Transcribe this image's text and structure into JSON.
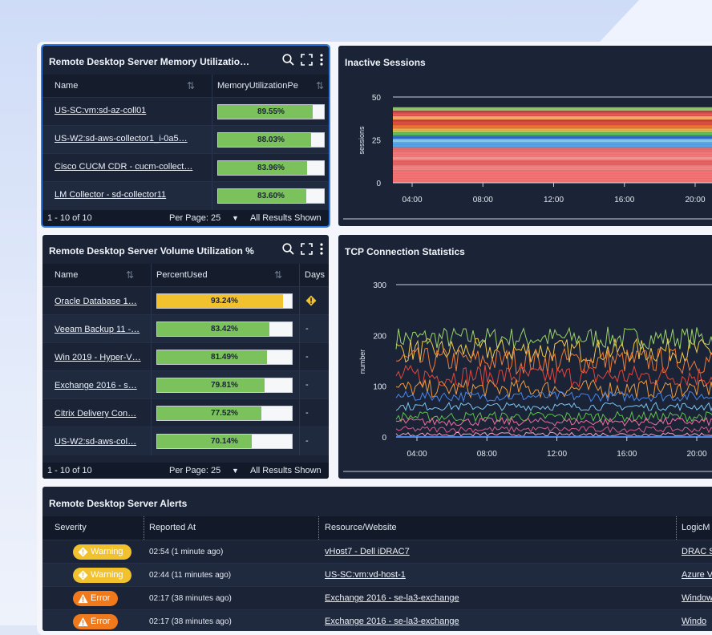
{
  "memory_panel": {
    "title": "Remote Desktop Server Memory Utilizatio…",
    "columns": [
      "Name",
      "MemoryUtilizationPe"
    ],
    "rows": [
      {
        "name": "US-SC:vm:sd-az-coll01",
        "value": 89.55,
        "label": "89.55%"
      },
      {
        "name": "US-W2:sd-aws-collector1_i-0a5…",
        "value": 88.03,
        "label": "88.03%"
      },
      {
        "name": "Cisco CUCM CDR - cucm-collect…",
        "value": 83.96,
        "label": "83.96%"
      },
      {
        "name": "LM Collector - sd-collector11",
        "value": 83.6,
        "label": "83.60%"
      }
    ],
    "footer": {
      "range": "1 - 10 of 10",
      "per_page": "Per Page: 25",
      "shown": "All Results Shown"
    }
  },
  "volume_panel": {
    "title": "Remote Desktop Server Volume Utilization %",
    "columns": [
      "Name",
      "PercentUsed",
      "Days"
    ],
    "rows": [
      {
        "name": "Oracle Database 1…",
        "value": 93.24,
        "label": "93.24%",
        "days": "",
        "warn": true
      },
      {
        "name": "Veeam Backup 11 -…",
        "value": 83.42,
        "label": "83.42%",
        "days": "-",
        "warn": false
      },
      {
        "name": "Win 2019 - Hyper-V…",
        "value": 81.49,
        "label": "81.49%",
        "days": "-",
        "warn": false
      },
      {
        "name": "Exchange 2016 - s…",
        "value": 79.81,
        "label": "79.81%",
        "days": "-",
        "warn": false
      },
      {
        "name": "Citrix Delivery Con…",
        "value": 77.52,
        "label": "77.52%",
        "days": "-",
        "warn": false
      },
      {
        "name": "US-W2:sd-aws-col…",
        "value": 70.14,
        "label": "70.14%",
        "days": "-",
        "warn": false
      }
    ],
    "footer": {
      "range": "1 - 10 of 10",
      "per_page": "Per Page: 25",
      "shown": "All Results Shown"
    }
  },
  "inactive_panel": {
    "title": "Inactive Sessions",
    "ylabel": "sessions",
    "yticks": [
      "50",
      "25",
      "0"
    ],
    "xticks": [
      "04:00",
      "08:00",
      "12:00",
      "16:00",
      "20:00"
    ]
  },
  "tcp_panel": {
    "title": "TCP Connection Statistics",
    "ylabel": "number",
    "yticks": [
      "300",
      "200",
      "100",
      "0"
    ],
    "xticks": [
      "04:00",
      "08:00",
      "12:00",
      "16:00",
      "20:00"
    ]
  },
  "alerts_panel": {
    "title": "Remote Desktop Server Alerts",
    "columns": [
      "Severity",
      "Reported At",
      "Resource/Website",
      "LogicM"
    ],
    "rows": [
      {
        "severity": "Warning",
        "reported": "02:54  (1 minute ago)",
        "resource": "vHost7 - Dell iDRAC7",
        "logic": "DRAC S"
      },
      {
        "severity": "Warning",
        "reported": "02:44  (11 minutes ago)",
        "resource": "US-SC:vm:vd-host-1",
        "logic": "Azure V"
      },
      {
        "severity": "Error",
        "reported": "02:17  (38 minutes ago)",
        "resource": "Exchange 2016 - se-la3-exchange",
        "logic": "Window"
      },
      {
        "severity": "Error",
        "reported": "02:17  (38 minutes ago)",
        "resource": "Exchange 2016 - se-la3-exchange",
        "logic": "Windo"
      }
    ]
  },
  "colors": {
    "panel": "#1b2436",
    "green": "#7cc25c",
    "yellow": "#f2c12e",
    "warning": "#f2c12e",
    "error": "#f07a1b",
    "accent": "#2f7de1"
  },
  "chart_data": [
    {
      "type": "area",
      "title": "Inactive Sessions",
      "ylabel": "sessions",
      "x": [
        "04:00",
        "08:00",
        "12:00",
        "16:00",
        "20:00"
      ],
      "ylim": [
        0,
        50
      ],
      "series_totals_approx": [
        44,
        44,
        44,
        44,
        44
      ]
    },
    {
      "type": "line",
      "title": "TCP Connection Statistics",
      "ylabel": "number",
      "x": [
        "04:00",
        "08:00",
        "12:00",
        "16:00",
        "20:00"
      ],
      "ylim": [
        0,
        300
      ],
      "series_levels_approx": [
        195,
        170,
        150,
        120,
        95,
        80,
        60,
        40,
        30,
        15,
        5
      ]
    }
  ]
}
